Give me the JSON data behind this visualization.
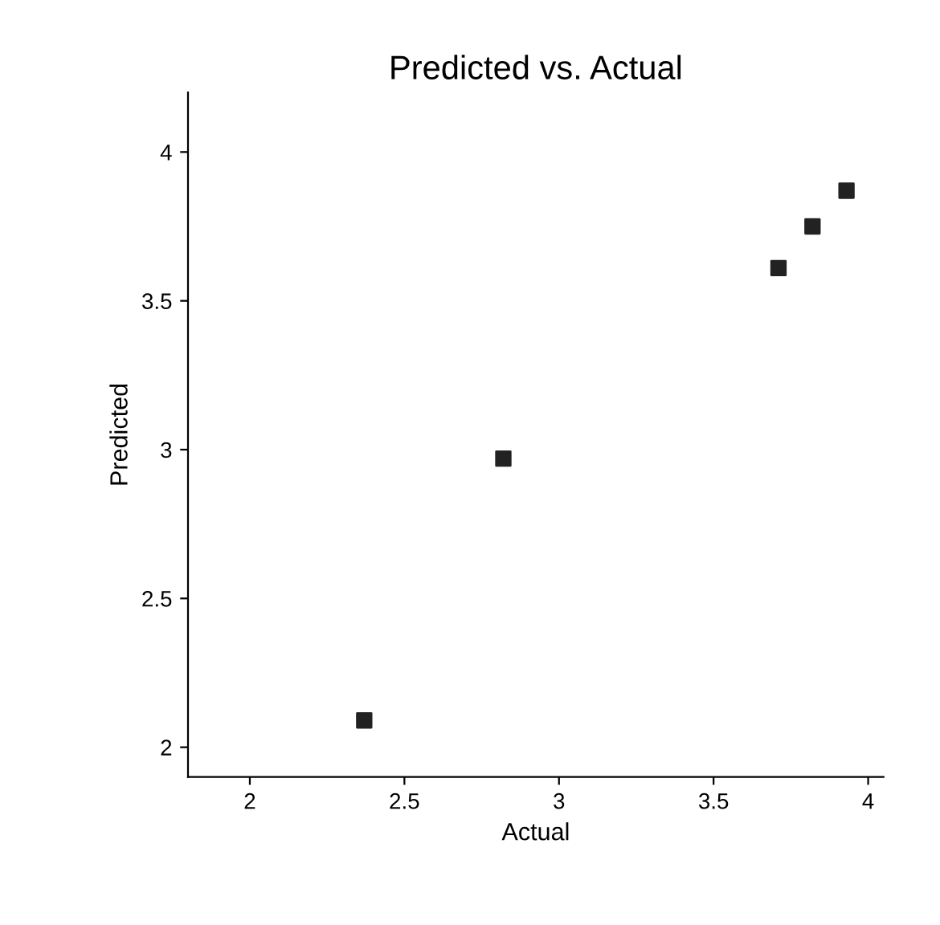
{
  "chart_data": {
    "type": "scatter",
    "title": "Predicted vs. Actual",
    "xlabel": "Actual",
    "ylabel": "Predicted",
    "x": [
      2.37,
      2.82,
      3.71,
      3.82,
      3.93
    ],
    "values": [
      2.09,
      2.97,
      3.61,
      3.75,
      3.87
    ],
    "color": "#222222",
    "marker": "square",
    "xlim": [
      1.8,
      4.05
    ],
    "ylim": [
      1.9,
      4.2
    ],
    "xticks": [
      2,
      2.5,
      3,
      3.5,
      4
    ],
    "yticks": [
      2,
      2.5,
      3,
      3.5,
      4
    ],
    "grid": false
  }
}
